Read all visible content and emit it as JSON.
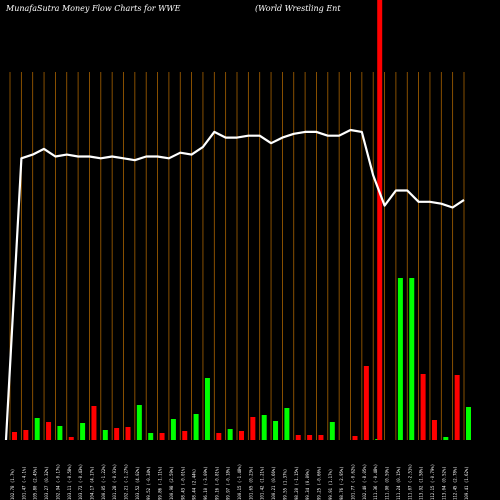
{
  "header": {
    "left_title": "MunafaSutra  Money Flow  Charts for WWE",
    "right_title": "(World Wrestling Ent"
  },
  "chart_data": {
    "type": "bar",
    "title": "MunafaSutra  Money Flow  Charts for WWE",
    "subtitle": "(World Wrestling Ent",
    "xlabel": "",
    "ylabel": "",
    "grid": true,
    "colors": {
      "up": "#00ff00",
      "down": "#ff0000",
      "gridline": "#a86200",
      "line": "#ffffff",
      "marker": "#ff0000",
      "background": "#000000"
    },
    "categories": [
      "102.78 (1.7%)",
      "101.47 (-4.1%)",
      "105.80 (2.45%)",
      "103.27 (0.32%)",
      "102.94 (-0.17%)",
      "103.11 (-0.58%)",
      "103.72 (-0.43%)",
      "104.17 (4.17%)",
      "100.05 (-1.22%)",
      "101.28 (-0.91%)",
      "102.21 (-1.27%)",
      "103.52 (4.02%)",
      "99.52 (-0.34%)",
      "99.86 (-1.11%)",
      "100.98 (2.59%)",
      "98.43 (-0.01%)",
      "98.44 (2.44%)",
      "96.10 (-3.09%)",
      "99.16 (-0.81%)",
      "99.97 (-0.18%)",
      "100.15 (-1.48%)",
      "101.65 (0.23%)",
      "101.42 (1.21%)",
      "100.21 (0.66%)",
      "99.55 (1.37%)",
      "98.20 (-1.15%)",
      "99.34 (0.09%)",
      "99.25 (-0.66%)",
      "99.91 (1.17%)",
      "98.76 (-2.95%)",
      "101.77 (-0.62%)",
      "102.40 (-8.05%)",
      "111.36 (-0.48%)",
      "111.90 (0.59%)",
      "111.24 (0.15%)",
      "111.07 (-2.51%)",
      "113.92 (1.58%)",
      "112.15 (-0.79%)",
      "113.04 (0.52%)",
      "112.45 (2.78%)",
      "109.41 (1.62%)"
    ],
    "money_flow": [
      8,
      10,
      22,
      18,
      14,
      3,
      17,
      34,
      10,
      12,
      13,
      35,
      7,
      7,
      21,
      9,
      26,
      62,
      7,
      11,
      9,
      23,
      25,
      19,
      32,
      5,
      5,
      5,
      18,
      0,
      4,
      74,
      1,
      0,
      162,
      162,
      66,
      20,
      3,
      65,
      33
    ],
    "direction": [
      "down",
      "down",
      "up",
      "down",
      "up",
      "down",
      "up",
      "down",
      "up",
      "down",
      "down",
      "up",
      "up",
      "down",
      "up",
      "down",
      "up",
      "up",
      "down",
      "up",
      "down",
      "down",
      "up",
      "up",
      "up",
      "down",
      "down",
      "down",
      "up",
      "up",
      "down",
      "down",
      "up",
      "up",
      "up",
      "up",
      "down",
      "down",
      "up",
      "down",
      "up"
    ],
    "price_line": [
      0,
      289,
      291,
      294,
      290,
      291,
      290,
      290,
      289,
      290,
      289,
      288,
      290,
      290,
      289,
      292,
      291,
      295,
      303,
      300,
      300,
      301,
      301,
      297,
      300,
      302,
      303,
      303,
      301,
      301,
      304,
      303,
      280,
      264,
      272,
      272,
      266,
      266,
      265,
      263,
      267
    ],
    "marker_index": 32
  }
}
